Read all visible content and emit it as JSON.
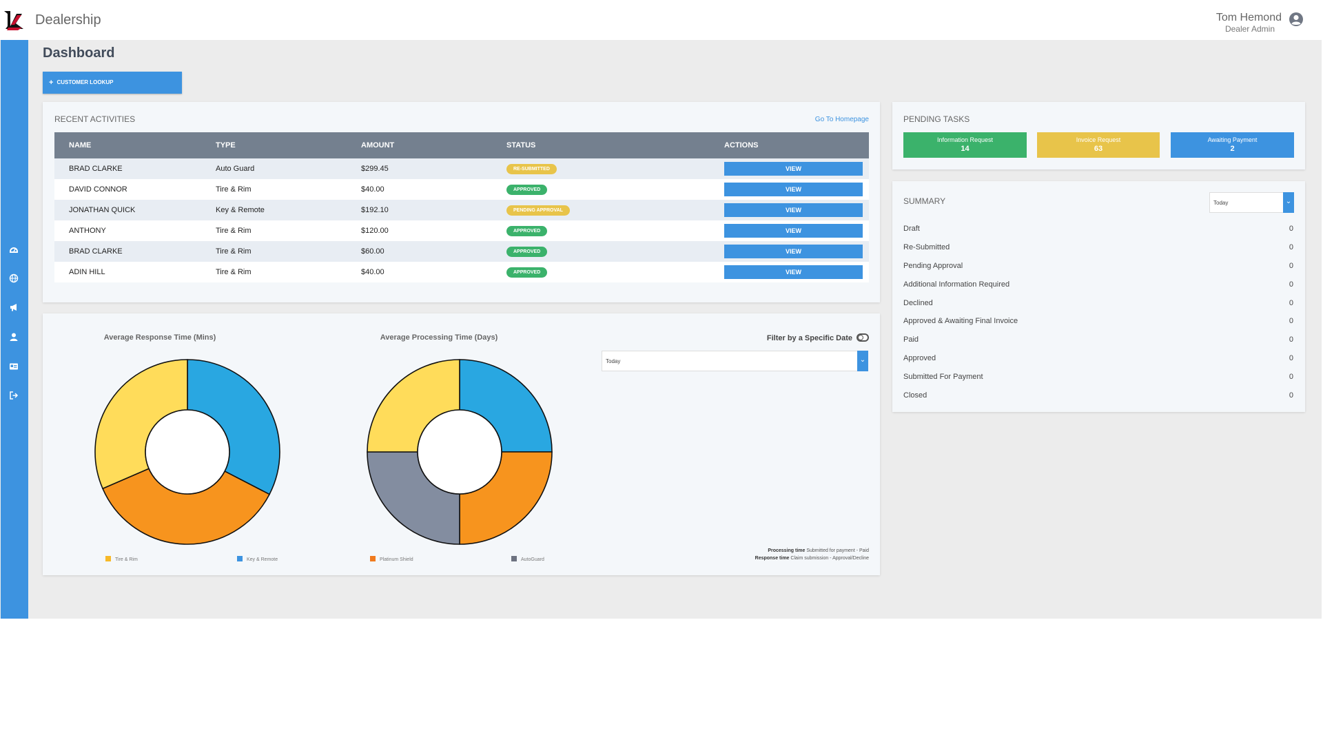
{
  "header": {
    "brand": "Dealership",
    "user_name": "Tom Hemond",
    "user_role": "Dealer Admin"
  },
  "page": {
    "title": "Dashboard",
    "lookup_button": "CUSTOMER LOOKUP"
  },
  "recent_activities": {
    "title": "RECENT ACTIVITIES",
    "link": "Go To Homepage",
    "columns": [
      "NAME",
      "TYPE",
      "AMOUNT",
      "STATUS",
      "ACTIONS"
    ],
    "rows": [
      {
        "name": "BRAD CLARKE",
        "type": "Auto Guard",
        "amount": "$299.45",
        "status": "RE-SUBMITTED",
        "action": "VIEW"
      },
      {
        "name": "DAVID CONNOR",
        "type": "Tire & Rim",
        "amount": "$40.00",
        "status": "APPROVED",
        "action": "VIEW"
      },
      {
        "name": "JONATHAN QUICK",
        "type": "Key & Remote",
        "amount": "$192.10",
        "status": "PENDING APPROVAL",
        "action": "VIEW"
      },
      {
        "name": "ANTHONY",
        "type": "Tire & Rim",
        "amount": "$120.00",
        "status": "APPROVED",
        "action": "VIEW"
      },
      {
        "name": "BRAD CLARKE",
        "type": "Tire & Rim",
        "amount": "$60.00",
        "status": "APPROVED",
        "action": "VIEW"
      },
      {
        "name": "ADIN HILL",
        "type": "Tire & Rim",
        "amount": "$40.00",
        "status": "APPROVED",
        "action": "VIEW"
      }
    ]
  },
  "charts": {
    "filter_label": "Filter by a Specific Date",
    "date_select": "Today",
    "footnote": {
      "processing_label": "Processing time",
      "processing_text": "Submitted for payment - Paid",
      "response_label": "Response time",
      "response_text": "Claim submission - Approval/Decline"
    },
    "legend": {
      "tire_rim": "Tire & Rim",
      "key_remote": "Key & Remote",
      "platinum_shield": "Platinum Shield",
      "autoguard": "AutoGuard"
    }
  },
  "chart_data": [
    {
      "type": "pie",
      "title": "Average Response Time (Mins)",
      "categories": [
        "Blue",
        "Orange",
        "Yellow"
      ],
      "values": [
        32.6,
        35.9,
        31.5
      ],
      "colors": [
        "#29a7e1",
        "#f7941e",
        "#ffdc5a"
      ]
    },
    {
      "type": "pie",
      "title": "Average Processing Time (Days)",
      "categories": [
        "Blue",
        "Orange",
        "Gray",
        "Yellow"
      ],
      "values": [
        25,
        25,
        25,
        25
      ],
      "colors": [
        "#29a7e1",
        "#f7941e",
        "#838da0",
        "#ffdc5a"
      ]
    }
  ],
  "pending_tasks": {
    "title": "PENDING TASKS",
    "items": [
      {
        "label": "Information Request",
        "count": "14"
      },
      {
        "label": "Invoice Request",
        "count": "63"
      },
      {
        "label": "Awaiting Payment",
        "count": "2"
      }
    ]
  },
  "summary": {
    "title": "SUMMARY",
    "select": "Today",
    "rows": [
      {
        "label": "Draft",
        "value": "0"
      },
      {
        "label": "Re-Submitted",
        "value": "0"
      },
      {
        "label": "Pending Approval",
        "value": "0"
      },
      {
        "label": "Additional Information Required",
        "value": "0"
      },
      {
        "label": "Declined",
        "value": "0"
      },
      {
        "label": "Approved & Awaiting Final Invoice",
        "value": "0"
      },
      {
        "label": "Paid",
        "value": "0"
      },
      {
        "label": "Approved",
        "value": "0"
      },
      {
        "label": "Submitted For Payment",
        "value": "0"
      },
      {
        "label": "Closed",
        "value": "0"
      }
    ]
  },
  "colors": {
    "accent": "#3d93e0",
    "green": "#3bb26b",
    "yellow": "#e8c44a",
    "table_header": "#74808f"
  },
  "icons": {
    "sidebar": [
      "dashboard-icon",
      "globe-icon",
      "megaphone-icon",
      "user-icon",
      "id-card-icon",
      "sign-out-icon"
    ]
  }
}
